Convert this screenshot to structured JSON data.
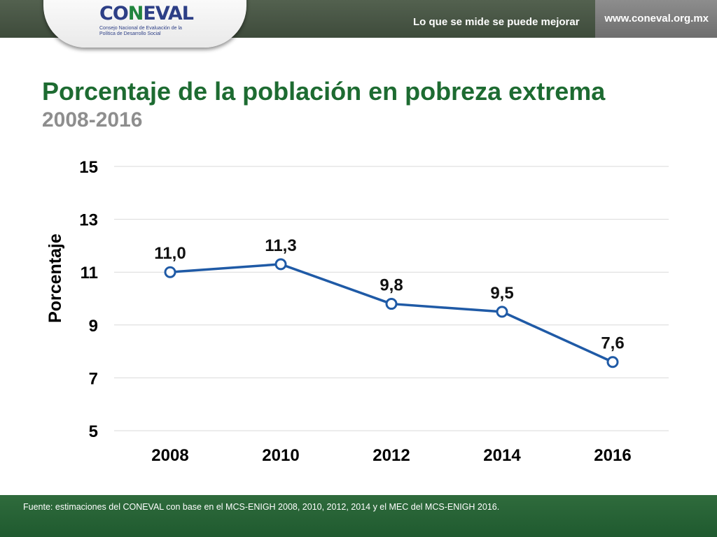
{
  "header": {
    "logo_main_1": "CO",
    "logo_main_2": "N",
    "logo_main_3": "EVAL",
    "logo_subtitle": "Consejo Nacional de Evaluación de la Política de Desarrollo Social",
    "slogan": "Lo que se mide se puede mejorar",
    "url": "www.coneval.org.mx"
  },
  "title": "Porcentaje de la población en pobreza extrema",
  "subtitle": "2008-2016",
  "footer": {
    "source": "Fuente: estimaciones del CONEVAL con base en el MCS-ENIGH 2008, 2010, 2012, 2014 y el MEC del MCS-ENIGH 2016."
  },
  "colors": {
    "line": "#1f5aa6",
    "title": "#1d6b31",
    "subtitle": "#8e8e8e",
    "gridline": "#d9d9d9"
  },
  "chart_data": {
    "type": "line",
    "x": [
      "2008",
      "2010",
      "2012",
      "2014",
      "2016"
    ],
    "series": [
      {
        "values": [
          11.0,
          11.3,
          9.8,
          9.5,
          7.6
        ],
        "labels": [
          "11,0",
          "11,3",
          "9,8",
          "9,5",
          "7,6"
        ]
      }
    ],
    "ylabel": "Porcentaje",
    "xlabel": "",
    "ylim": [
      5,
      15
    ],
    "yticks": [
      5,
      7,
      9,
      11,
      13,
      15
    ],
    "grid": true,
    "legend": "none"
  }
}
